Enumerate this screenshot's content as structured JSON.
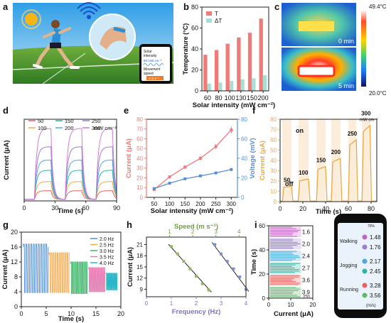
{
  "colors": {
    "red": "#ef7b79",
    "teal": "#a8ded4",
    "blue": "#5b8fd3",
    "orange": "#f2a94a",
    "orange_line": "#e9a847",
    "sky": "#55b8e8",
    "grass": "#4c8f2f",
    "sun": "#f6b418",
    "phone": "#0d0d0d"
  },
  "panel_letters": [
    "a",
    "b",
    "c",
    "d",
    "e",
    "f",
    "g",
    "h",
    "i"
  ],
  "panel_a": {
    "icons": [
      "sun-icon",
      "runner-icon",
      "wifi-signal-icon",
      "knee-sensor-icon",
      "smartphone-icon"
    ],
    "phone_label1": "Solar",
    "phone_label2": "intensity",
    "phone_value1": "80 mW cm⁻²",
    "phone_label3": "Movement",
    "phone_label4": "speed",
    "phone_value2": "3 m s⁻¹"
  },
  "panel_c": {
    "max_temp": "49.4°C",
    "min_temp": "20.0°C",
    "top_label": "0 min",
    "bottom_label": "5 min"
  },
  "panel_f": {
    "off": "off",
    "on": "on"
  },
  "panel_i": {
    "speed_unit": "(m/s)",
    "hz_unit": "(Hz)",
    "battery": "79%",
    "activities": [
      {
        "label": "Walking",
        "speeds": [
          "1.48",
          "1.76"
        ]
      },
      {
        "label": "Jogging",
        "speeds": [
          "2.17",
          "2.45"
        ]
      },
      {
        "label": "Running",
        "speeds": [
          "3.28",
          "3.56"
        ]
      }
    ]
  },
  "chart_data": [
    {
      "id": "b",
      "type": "bar",
      "xlabel": "Solar intensity (mW cm⁻²)",
      "ylabel": "Temperature (°C)",
      "categories": [
        "60",
        "80",
        "100",
        "130",
        "150",
        "200"
      ],
      "series": [
        {
          "name": "T",
          "values": [
            34.5,
            39,
            45,
            51,
            55.5,
            69
          ]
        },
        {
          "name": "ΔT",
          "values": [
            7,
            8,
            9.5,
            11,
            12,
            15
          ]
        }
      ],
      "ylim": [
        0,
        80
      ],
      "yticks": [
        0,
        20,
        40,
        60,
        80
      ],
      "legend": "top-left",
      "grid": false
    },
    {
      "id": "d",
      "type": "line",
      "xlabel": "Time (s)",
      "ylabel": "Current (μA)",
      "xlim": [
        0,
        90
      ],
      "xticks": [
        0,
        30,
        60,
        90
      ],
      "ylim": [
        0,
        80
      ],
      "legend_unit": "mW cm⁻²",
      "pulse_windows": [
        [
          10,
          26
        ],
        [
          40,
          56
        ],
        [
          70,
          86
        ]
      ],
      "series": [
        {
          "name": "50",
          "peak": 10
        },
        {
          "name": "100",
          "peak": 19
        },
        {
          "name": "150",
          "peak": 30
        },
        {
          "name": "200",
          "peak": 40
        },
        {
          "name": "250",
          "peak": 53
        },
        {
          "name": "300",
          "peak": 71
        }
      ],
      "legend": "top",
      "grid": false
    },
    {
      "id": "e",
      "type": "line",
      "xlabel": "Solar intensity (mW cm⁻²)",
      "ylabel": "Current (μA)",
      "y2label": "Voltage (mV)",
      "x": [
        50,
        100,
        150,
        200,
        250,
        300
      ],
      "xticks": [
        50,
        100,
        150,
        200,
        250,
        300
      ],
      "xlim": [
        25,
        320
      ],
      "ylim": [
        0,
        80
      ],
      "yticks": [
        0,
        10,
        20,
        30,
        40,
        50,
        60,
        70,
        80
      ],
      "y2lim": [
        0,
        80
      ],
      "y2ticks": [
        0,
        20,
        40,
        60,
        80
      ],
      "series": [
        {
          "name": "Current",
          "values": [
            8,
            21,
            31,
            40,
            52,
            69
          ],
          "errors": [
            1.5,
            1.5,
            2,
            2,
            2.5,
            3.5
          ]
        },
        {
          "name": "Voltage",
          "values": [
            9,
            14.5,
            19,
            22,
            25,
            28.5
          ],
          "errors": [
            0.6,
            0.7,
            0.8,
            1,
            1,
            1.6
          ]
        }
      ],
      "grid": false
    },
    {
      "id": "f",
      "type": "line",
      "xlabel": "Time (s)",
      "ylabel": "Current (μA)",
      "xlim": [
        0,
        85
      ],
      "xticks": [
        0,
        20,
        40,
        60,
        80
      ],
      "ylim": [
        0,
        80
      ],
      "yticks": [
        0,
        10,
        20,
        30,
        40,
        50,
        60,
        70,
        80
      ],
      "annotations": [
        "50",
        "100",
        "150",
        "200",
        "250",
        "300 mW cm⁻²"
      ],
      "steps": [
        {
          "on": [
            2,
            10
          ],
          "level": 15
        },
        {
          "on": [
            16,
            25
          ],
          "level": 22
        },
        {
          "on": [
            32,
            40
          ],
          "level": 34
        },
        {
          "on": [
            45,
            53
          ],
          "level": 42
        },
        {
          "on": [
            60,
            67
          ],
          "level": 60
        },
        {
          "on": [
            72,
            79
          ],
          "level": 74
        }
      ],
      "grid": false
    },
    {
      "id": "g",
      "type": "line",
      "xlabel": "Time (s)",
      "ylabel": "Current (μA)",
      "xlim": [
        0,
        20
      ],
      "xticks": [
        0,
        5,
        10,
        15,
        20
      ],
      "ylim": [
        0,
        20
      ],
      "yticks": [
        0,
        4,
        8,
        12,
        16,
        20
      ],
      "series": [
        {
          "name": "2.0 Hz",
          "t": [
            0.4,
            5.4
          ],
          "max": 16.8,
          "min": 3.8,
          "freq": 2.0
        },
        {
          "name": "2.5 Hz",
          "t": [
            5.6,
            9.7
          ],
          "max": 14.5,
          "min": 3.8,
          "freq": 2.5
        },
        {
          "name": "3.0 Hz",
          "t": [
            9.9,
            13.3
          ],
          "max": 12.0,
          "min": 3.5,
          "freq": 3.0
        },
        {
          "name": "3.5 Hz",
          "t": [
            13.5,
            16.8
          ],
          "max": 10.5,
          "min": 4.0,
          "freq": 3.5
        },
        {
          "name": "4.0 Hz",
          "t": [
            17.0,
            19.3
          ],
          "max": 9.0,
          "min": 4.5,
          "freq": 4.0
        }
      ],
      "legend": "top-right",
      "grid": false
    },
    {
      "id": "h",
      "type": "scatter",
      "xlabel": "Frequency (Hz)",
      "x2label": "Speed (m s⁻¹)",
      "ylabel": "Current (μA)",
      "xlim": [
        0,
        4
      ],
      "xticks": [
        0,
        1,
        2,
        3,
        4
      ],
      "x2lim": [
        0,
        4.3
      ],
      "x2ticks": [
        1,
        2,
        3,
        4
      ],
      "ylim": [
        7,
        23
      ],
      "yticks": [
        9,
        12,
        15,
        18,
        21
      ],
      "series": [
        {
          "name": "Frequency",
          "x": [
            1.0,
            1.25,
            1.5,
            1.75,
            2.0,
            2.25,
            2.5
          ],
          "values": [
            20.5,
            18.5,
            16.5,
            14.5,
            12.5,
            10.5,
            8.8
          ]
        },
        {
          "name": "Speed",
          "x": [
            2.75,
            3.0,
            3.25,
            3.5,
            3.75,
            4.0
          ],
          "values": [
            21,
            18.5,
            16.5,
            14.5,
            12.3,
            9
          ]
        }
      ],
      "grid": false
    },
    {
      "id": "i",
      "type": "heatmap",
      "xlabel": "Current (μA)",
      "ylabel": "Time (s)",
      "xlim": [
        0,
        20
      ],
      "xticks": [
        0,
        10,
        20
      ],
      "ylim": [
        0,
        60
      ],
      "yticks": [
        0,
        20,
        40,
        60
      ],
      "bands": [
        {
          "freq": "3.9",
          "color": "#5fb96a"
        },
        {
          "freq": "3.6",
          "color": "#e8635f"
        },
        {
          "freq": "2.7",
          "color": "#2bb6a4"
        },
        {
          "freq": "2.4",
          "color": "#4ba9dd"
        },
        {
          "freq": "2.0",
          "color": "#9b7fd0"
        },
        {
          "freq": "1.6",
          "color": "#c266c2"
        }
      ],
      "grid": false
    }
  ]
}
